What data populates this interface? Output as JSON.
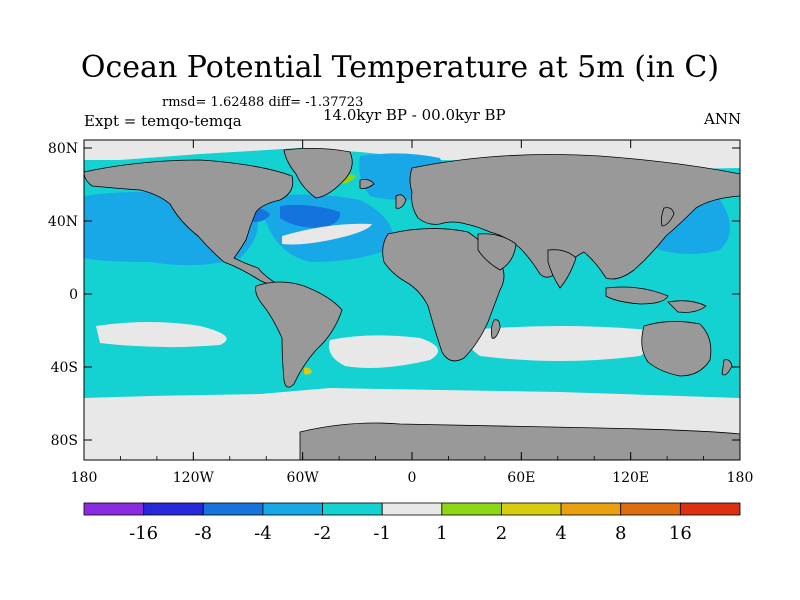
{
  "title": "Ocean Potential Temperature at 5m (in C)",
  "stats": "rmsd= 1.62488 diff= -1.37723",
  "experiment": "Expt = temqo-temqa",
  "period": "14.0kyr BP - 00.0kyr BP",
  "season": "ANN",
  "y_ticks": [
    "80N",
    "40N",
    "0",
    "40S",
    "80S"
  ],
  "x_ticks": [
    "180",
    "120W",
    "60W",
    "0",
    "60E",
    "120E",
    "180"
  ],
  "colorbar": {
    "colors": [
      "#8a2be2",
      "#2828d8",
      "#1473dc",
      "#18a8e8",
      "#14d2d2",
      "#e8e8e8",
      "#8cd614",
      "#d8cc10",
      "#e8a010",
      "#e06c10",
      "#dc3010"
    ],
    "labels": [
      "-16",
      "-8",
      "-4",
      "-2",
      "-1",
      "1",
      "2",
      "4",
      "8",
      "16"
    ]
  },
  "colors": {
    "land": "#999999",
    "diff_minus1_to_1": "#e8e8e8",
    "diff_minus2_to_minus1": "#14d2d2",
    "diff_minus4_to_minus2": "#18a8e8",
    "diff_minus8_to_minus4": "#1473dc",
    "diff_minus16_to_minus8": "#2828d8",
    "diff_1_to_2": "#8cd614"
  }
}
